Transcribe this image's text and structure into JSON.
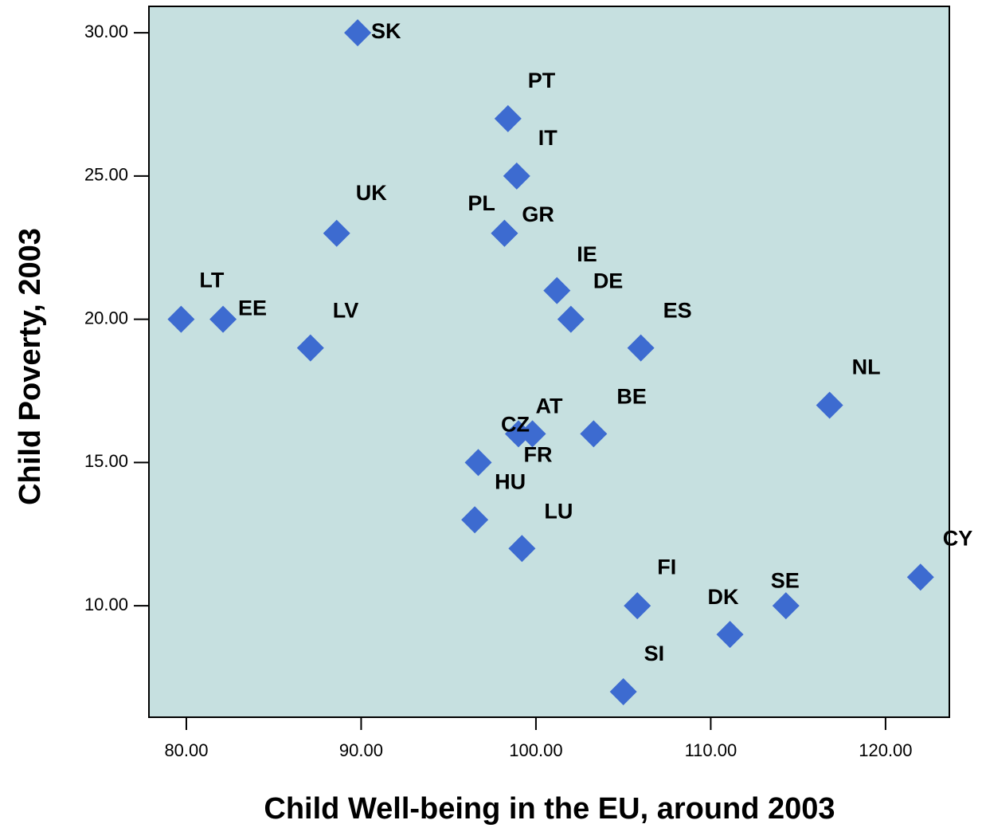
{
  "chart_data": {
    "type": "scatter",
    "x_label": "Child Well-being in the EU, around 2003",
    "y_label": "Child Poverty, 2003",
    "labels": [
      "SK",
      "PT",
      "IT",
      "UK",
      "PL",
      "GR",
      "IE",
      "DE",
      "LT",
      "EE",
      "LV",
      "ES",
      "NL",
      "BE",
      "CZ",
      "AT",
      "FR",
      "HU",
      "LU",
      "CY",
      "FI",
      "SE",
      "DK",
      "SI"
    ],
    "x": [
      89.8,
      98.4,
      98.9,
      88.6,
      98.2,
      98.2,
      101.2,
      102.0,
      79.7,
      82.1,
      87.1,
      106.0,
      116.8,
      103.3,
      99.0,
      99.8,
      96.7,
      96.5,
      99.2,
      122.0,
      105.8,
      114.3,
      111.1,
      105.0
    ],
    "values": [
      30,
      27,
      25,
      23,
      23,
      23,
      21,
      20,
      20,
      20,
      19,
      19,
      17,
      16,
      16,
      16,
      15,
      13,
      12,
      11,
      10,
      10,
      9,
      7
    ],
    "color": "#3d6bd0",
    "xlim": [
      77.86,
      123.65
    ],
    "ylim": [
      6.11,
      30.92
    ],
    "xticks": [
      {
        "value": 80,
        "label": "80.00"
      },
      {
        "value": 90,
        "label": "90.00"
      },
      {
        "value": 100,
        "label": "100.00"
      },
      {
        "value": 110,
        "label": "110.00"
      },
      {
        "value": 120,
        "label": "120.00"
      }
    ],
    "yticks": [
      {
        "value": 10,
        "label": "10.00"
      },
      {
        "value": 15,
        "label": "15.00"
      },
      {
        "value": 20,
        "label": "20.00"
      },
      {
        "value": 25,
        "label": "25.00"
      },
      {
        "value": 30,
        "label": "30.00"
      }
    ]
  }
}
